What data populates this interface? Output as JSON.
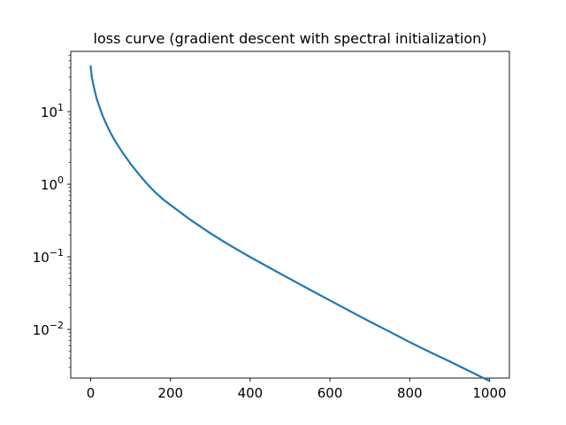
{
  "chart_data": {
    "type": "line",
    "title": "loss curve (gradient descent with spectral initialization)",
    "xlabel": "",
    "ylabel": "",
    "xlim": [
      -50,
      1050
    ],
    "ylim_log10": [
      -2.67,
      1.83
    ],
    "yscale": "log",
    "grid": false,
    "legend": "none",
    "x_ticks": [
      0,
      200,
      400,
      600,
      800,
      1000
    ],
    "x_tick_labels": [
      "0",
      "200",
      "400",
      "600",
      "800",
      "1000"
    ],
    "y_ticks": [
      {
        "base": "10",
        "exp": "1",
        "value": 10
      },
      {
        "base": "10",
        "exp": "0",
        "value": 1
      },
      {
        "base": "10",
        "exp": "−1",
        "value": 0.1
      },
      {
        "base": "10",
        "exp": "−2",
        "value": 0.01
      }
    ],
    "series": [
      {
        "color": "#1f77b4",
        "x": [
          0,
          1,
          3,
          5,
          10,
          15,
          20,
          30,
          40,
          50,
          60,
          80,
          100,
          120,
          140,
          160,
          180,
          200,
          250,
          300,
          350,
          400,
          450,
          500,
          550,
          600,
          650,
          700,
          750,
          800,
          850,
          900,
          950,
          1000
        ],
        "y": [
          42.2,
          36.5,
          29.6,
          26.0,
          19.5,
          15.1,
          12.5,
          8.76,
          6.56,
          5.09,
          4.03,
          2.73,
          1.91,
          1.39,
          1.03,
          0.791,
          0.629,
          0.517,
          0.324,
          0.211,
          0.143,
          0.0991,
          0.07,
          0.0496,
          0.0352,
          0.0251,
          0.0179,
          0.0128,
          0.00929,
          0.00668,
          0.0049,
          0.00363,
          0.00266,
          0.00195
        ]
      }
    ]
  }
}
